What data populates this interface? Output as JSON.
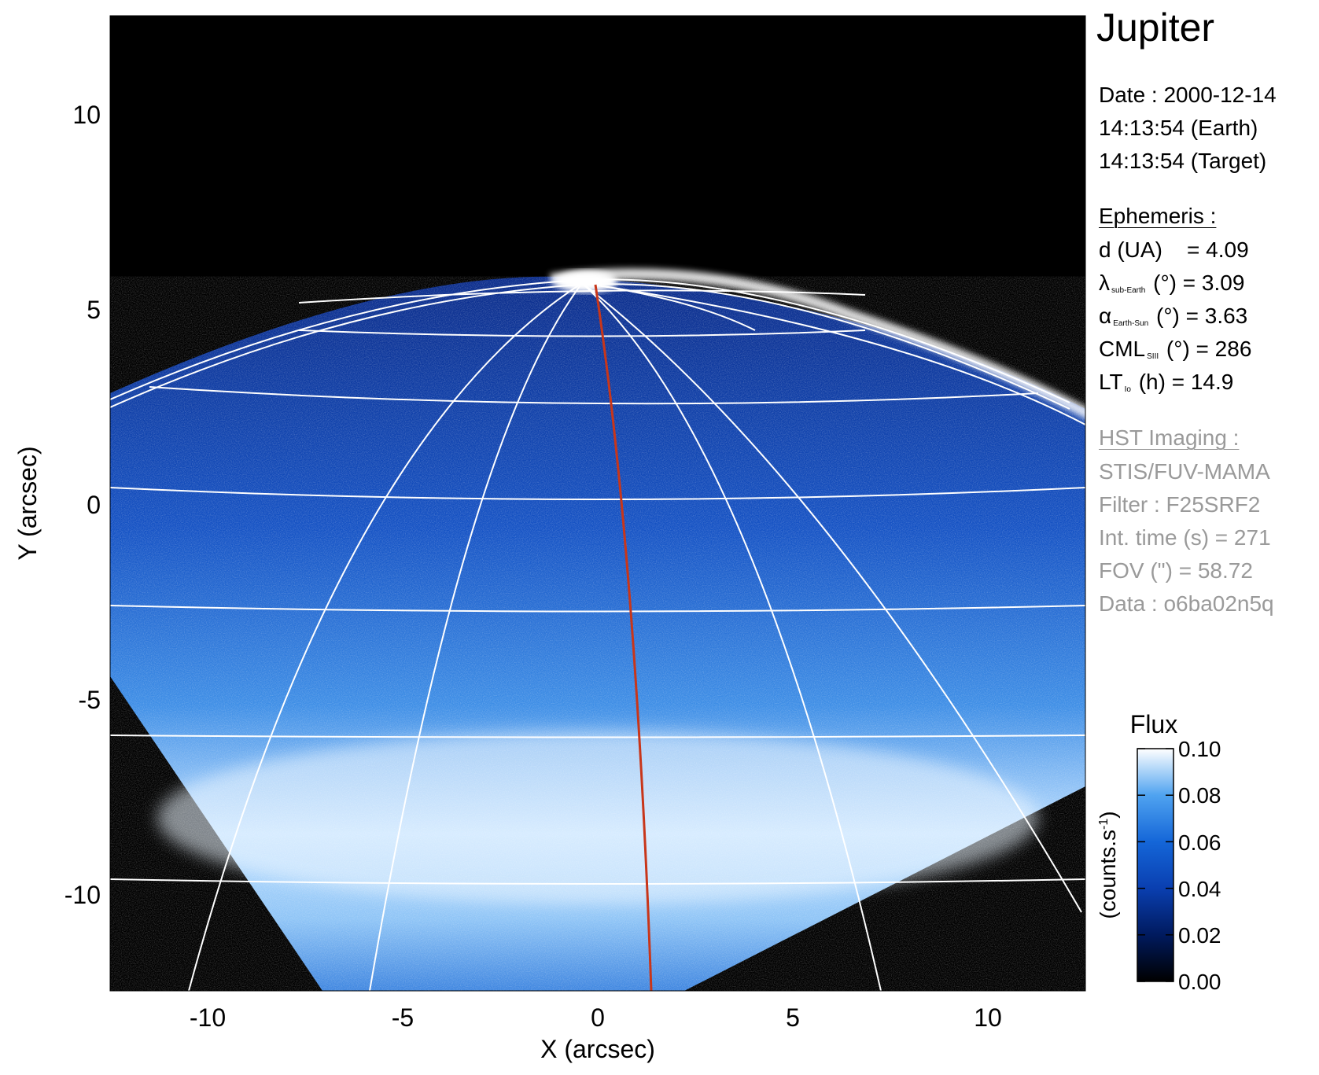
{
  "chart_data": {
    "type": "heatmap",
    "title": "Jupiter",
    "xlabel": "X (arcsec)",
    "ylabel": "Y (arcsec)",
    "xlim": [
      -12.5,
      12.5
    ],
    "ylim": [
      -12.5,
      12.5
    ],
    "xticks": [
      -10,
      -5,
      0,
      5,
      10
    ],
    "yticks": [
      -10,
      -5,
      0,
      5,
      10
    ],
    "xtick_labels": [
      "-10",
      "-5",
      "0",
      "5",
      "10"
    ],
    "ytick_labels": [
      "-10",
      "-5",
      "0",
      "5",
      "10"
    ],
    "colorbar": {
      "title": "Flux",
      "label": "(counts.s",
      "label_sup": "-1",
      "label_close": ")",
      "ticks": [
        0.0,
        0.02,
        0.04,
        0.06,
        0.08,
        0.1
      ],
      "tick_labels": [
        "0.00",
        "0.02",
        "0.04",
        "0.06",
        "0.08",
        "0.10"
      ],
      "colors": [
        "#000000",
        "#001a5e",
        "#0a3fb0",
        "#1466d8",
        "#4fa3f0",
        "#ffffff"
      ]
    },
    "overlays": [
      "latitude-longitude grid",
      "red meridian line",
      "auroral oval emission"
    ],
    "colors": {
      "grid": "#ffffff",
      "meridian": "#c8361a",
      "background": "#000000"
    }
  },
  "info": {
    "planet": "Jupiter",
    "date_line": "Date : 2000-12-14",
    "earth_time": "14:13:54 (Earth)",
    "target_time": "14:13:54 (Target)",
    "ephemeris_header": "Ephemeris :",
    "eph": [
      {
        "sym": "d (UA)",
        "sub": "",
        "rest": "    = 4.09"
      },
      {
        "sym": "λ",
        "sub": "sub-Earth",
        "rest": " (°) = 3.09"
      },
      {
        "sym": "α",
        "sub": "Earth-Sun",
        "rest": " (°) = 3.63"
      },
      {
        "sym": "CML",
        "sub": "SIII",
        "rest": " (°) = 286"
      },
      {
        "sym": "LT",
        "sub": "Io",
        "rest": " (h) = 14.9"
      }
    ],
    "hst_header": "HST Imaging :",
    "hst": [
      "STIS/FUV-MAMA",
      "Filter : F25SRF2",
      "Int. time (s) = 271",
      "FOV (\") = 58.72",
      "Data : o6ba02n5q"
    ]
  }
}
